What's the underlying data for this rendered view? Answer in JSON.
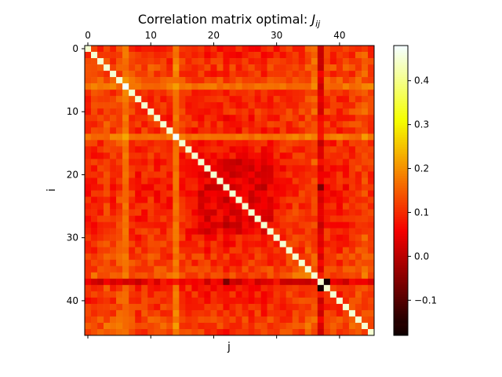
{
  "chart_data": {
    "type": "heatmap",
    "title": "Correlation matrix optimal: ",
    "title_math": "J",
    "title_math_sub": "ij",
    "xlabel": "j",
    "ylabel": "i",
    "n": 46,
    "x_ticks": [
      0,
      10,
      20,
      30,
      40
    ],
    "y_ticks": [
      0,
      10,
      20,
      30,
      40
    ],
    "colorbar": {
      "cmap": "hot",
      "vmin": -0.18,
      "vmax": 0.48,
      "ticks": [
        -0.1,
        0.0,
        0.1,
        0.2,
        0.3,
        0.4
      ],
      "tick_labels": [
        "−0.1",
        "0.0",
        "0.1",
        "0.2",
        "0.3",
        "0.4"
      ]
    },
    "diagonal": [
      0.45,
      0.45,
      0.45,
      0.45,
      0.45,
      0.45,
      0.48,
      0.45,
      0.45,
      0.45,
      0.45,
      0.45,
      0.45,
      0.45,
      0.48,
      0.45,
      0.45,
      0.45,
      0.45,
      0.45,
      0.45,
      0.45,
      0.45,
      0.45,
      0.45,
      0.45,
      0.45,
      0.45,
      0.45,
      0.45,
      0.45,
      0.45,
      0.45,
      0.45,
      0.45,
      0.45,
      0.45,
      0.45,
      0.45,
      0.45,
      0.45,
      0.45,
      0.45,
      0.45,
      0.45,
      0.45
    ],
    "row_col_level": [
      0.1,
      0.11,
      0.12,
      0.14,
      0.12,
      0.16,
      0.19,
      0.12,
      0.1,
      0.11,
      0.12,
      0.1,
      0.11,
      0.1,
      0.2,
      0.1,
      0.09,
      0.08,
      0.08,
      0.07,
      0.07,
      0.08,
      0.05,
      0.07,
      0.06,
      0.08,
      0.08,
      0.08,
      0.07,
      0.09,
      0.1,
      0.1,
      0.11,
      0.13,
      0.12,
      0.15,
      0.17,
      0.06,
      0.1,
      0.1,
      0.1,
      0.11,
      0.12,
      0.14,
      0.16,
      0.13
    ],
    "band_ranges": [
      [
        4,
        7,
        0.15
      ]
    ],
    "dark_spots": [
      [
        37,
        38,
        -0.17
      ],
      [
        38,
        37,
        -0.17
      ],
      [
        37,
        22,
        -0.06
      ],
      [
        22,
        37,
        -0.06
      ],
      [
        23,
        26,
        0.02
      ],
      [
        26,
        23,
        0.02
      ],
      [
        24,
        27,
        0.03
      ],
      [
        27,
        24,
        0.03
      ],
      [
        25,
        25,
        0.45
      ]
    ]
  }
}
